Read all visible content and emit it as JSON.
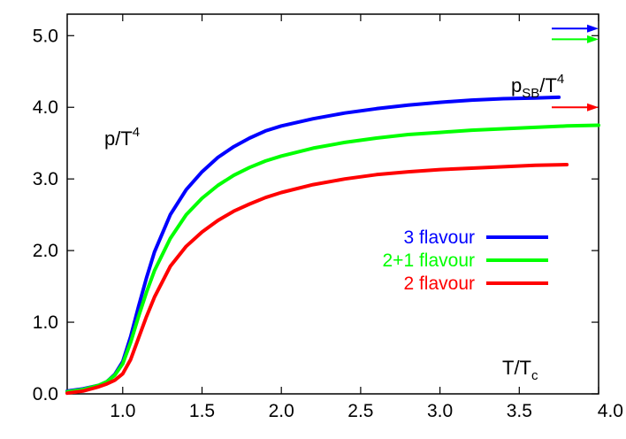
{
  "chart_data": {
    "type": "line",
    "xlim": [
      0.65,
      4.0
    ],
    "ylim": [
      0.0,
      5.3
    ],
    "x_ticks": [
      {
        "value": 1.0,
        "label": "1.0"
      },
      {
        "value": 1.5,
        "label": "1.5"
      },
      {
        "value": 2.0,
        "label": "2.0"
      },
      {
        "value": 2.5,
        "label": "2.5"
      },
      {
        "value": 3.0,
        "label": "3.0"
      },
      {
        "value": 3.5,
        "label": "3.5"
      },
      {
        "value": 4.0,
        "label": "4.0"
      }
    ],
    "y_ticks": [
      {
        "value": 0.0,
        "label": "0.0"
      },
      {
        "value": 1.0,
        "label": "1.0"
      },
      {
        "value": 2.0,
        "label": "2.0"
      },
      {
        "value": 3.0,
        "label": "3.0"
      },
      {
        "value": 4.0,
        "label": "4.0"
      },
      {
        "value": 5.0,
        "label": "5.0"
      }
    ],
    "ylabel_text": {
      "main": "p/T",
      "sup": "4"
    },
    "xlabel_text": {
      "main": "T/T",
      "sub": "c"
    },
    "sb_label": {
      "main": "p",
      "sub": "SB",
      "mid": "/T",
      "sup": "4"
    },
    "legend_position": "center-right",
    "series": [
      {
        "name": "3 flavour",
        "color": "#0000ff",
        "sb_limit": 5.1,
        "x": [
          0.65,
          0.75,
          0.85,
          0.9,
          0.95,
          1.0,
          1.05,
          1.1,
          1.15,
          1.2,
          1.3,
          1.4,
          1.5,
          1.6,
          1.7,
          1.8,
          1.9,
          2.0,
          2.2,
          2.4,
          2.6,
          2.8,
          3.0,
          3.2,
          3.4,
          3.6,
          3.75
        ],
        "y": [
          0.04,
          0.07,
          0.12,
          0.17,
          0.27,
          0.45,
          0.8,
          1.22,
          1.62,
          1.98,
          2.5,
          2.85,
          3.1,
          3.3,
          3.45,
          3.57,
          3.67,
          3.74,
          3.84,
          3.92,
          3.98,
          4.03,
          4.07,
          4.1,
          4.12,
          4.13,
          4.14
        ]
      },
      {
        "name": "2+1 flavour",
        "color": "#00ff00",
        "sb_limit": 4.95,
        "x": [
          0.65,
          0.75,
          0.85,
          0.9,
          0.95,
          1.0,
          1.05,
          1.1,
          1.15,
          1.2,
          1.3,
          1.4,
          1.5,
          1.6,
          1.7,
          1.8,
          1.9,
          2.0,
          2.2,
          2.4,
          2.6,
          2.8,
          3.0,
          3.2,
          3.4,
          3.6,
          3.8,
          4.0
        ],
        "y": [
          0.03,
          0.06,
          0.12,
          0.17,
          0.26,
          0.42,
          0.72,
          1.08,
          1.42,
          1.72,
          2.17,
          2.5,
          2.73,
          2.91,
          3.05,
          3.16,
          3.25,
          3.32,
          3.43,
          3.51,
          3.57,
          3.62,
          3.65,
          3.68,
          3.7,
          3.72,
          3.74,
          3.75
        ]
      },
      {
        "name": "2 flavour",
        "color": "#ff0000",
        "sb_limit": 4.0,
        "x": [
          0.65,
          0.75,
          0.85,
          0.9,
          0.95,
          1.0,
          1.05,
          1.1,
          1.15,
          1.2,
          1.3,
          1.4,
          1.5,
          1.6,
          1.7,
          1.8,
          1.9,
          2.0,
          2.2,
          2.4,
          2.6,
          2.8,
          3.0,
          3.2,
          3.4,
          3.6,
          3.8
        ],
        "y": [
          0.01,
          0.04,
          0.1,
          0.14,
          0.19,
          0.28,
          0.48,
          0.78,
          1.08,
          1.35,
          1.78,
          2.06,
          2.26,
          2.42,
          2.55,
          2.65,
          2.74,
          2.81,
          2.92,
          3.0,
          3.06,
          3.1,
          3.13,
          3.15,
          3.17,
          3.19,
          3.2
        ]
      }
    ]
  }
}
